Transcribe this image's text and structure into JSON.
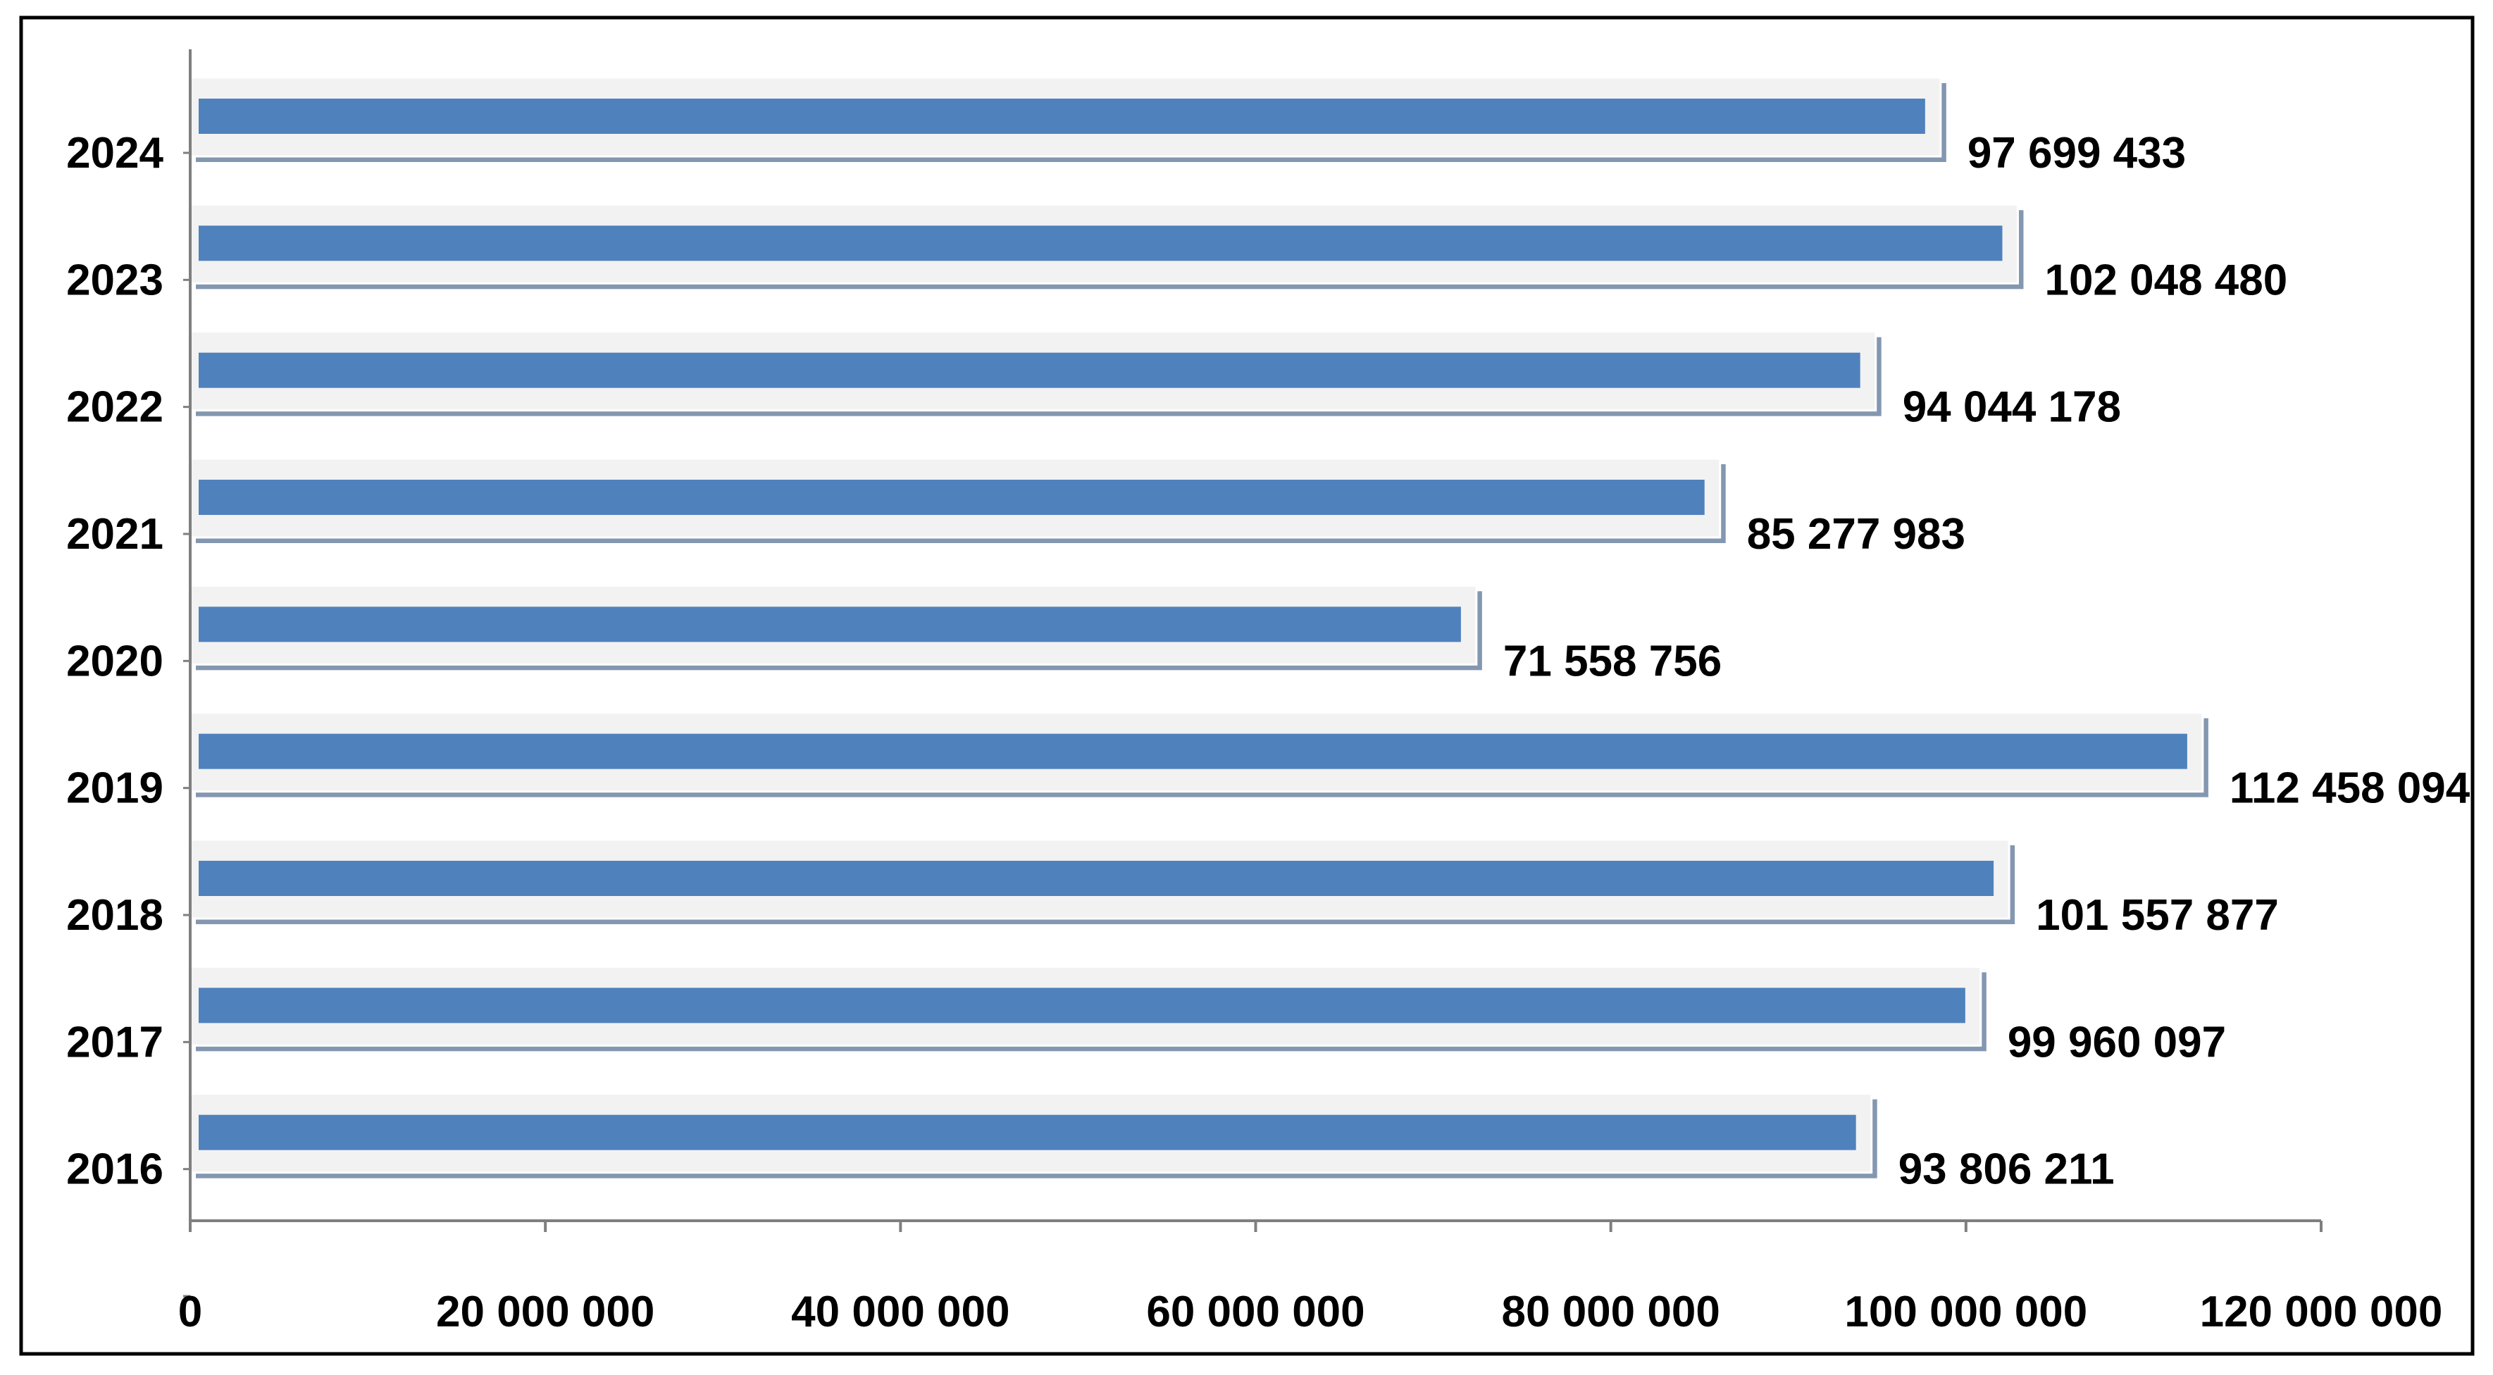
{
  "chart_data": {
    "type": "bar",
    "orientation": "horizontal",
    "title": "",
    "xlabel": "",
    "ylabel": "",
    "categories": [
      "2024",
      "2023",
      "2022",
      "2021",
      "2020",
      "2019",
      "2018",
      "2017",
      "2016"
    ],
    "values": [
      97699433,
      102048480,
      94044178,
      85277983,
      71558756,
      112458094,
      101557877,
      99960097,
      93806211
    ],
    "value_labels": [
      "97 699 433",
      "102 048 480",
      "94 044 178",
      "85 277 983",
      "71 558 756",
      "112 458 094",
      "101 557 877",
      "99 960 097",
      "93 806 211"
    ],
    "xlim": [
      0,
      120000000
    ],
    "x_ticks": [
      0,
      20000000,
      40000000,
      60000000,
      80000000,
      100000000,
      120000000
    ],
    "x_tick_labels": [
      "0",
      "20 000 000",
      "40 000 000",
      "60 000 000",
      "80 000 000",
      "100 000 000",
      "120 000 000"
    ],
    "grid": false,
    "legend": "none",
    "colors": {
      "bar": "#4f81bd",
      "bar_bed": "#f2f2f2",
      "bar_shadow": "#8497b0",
      "axis": "#7f7f7f",
      "frame": "#000000",
      "text": "#000000"
    }
  }
}
